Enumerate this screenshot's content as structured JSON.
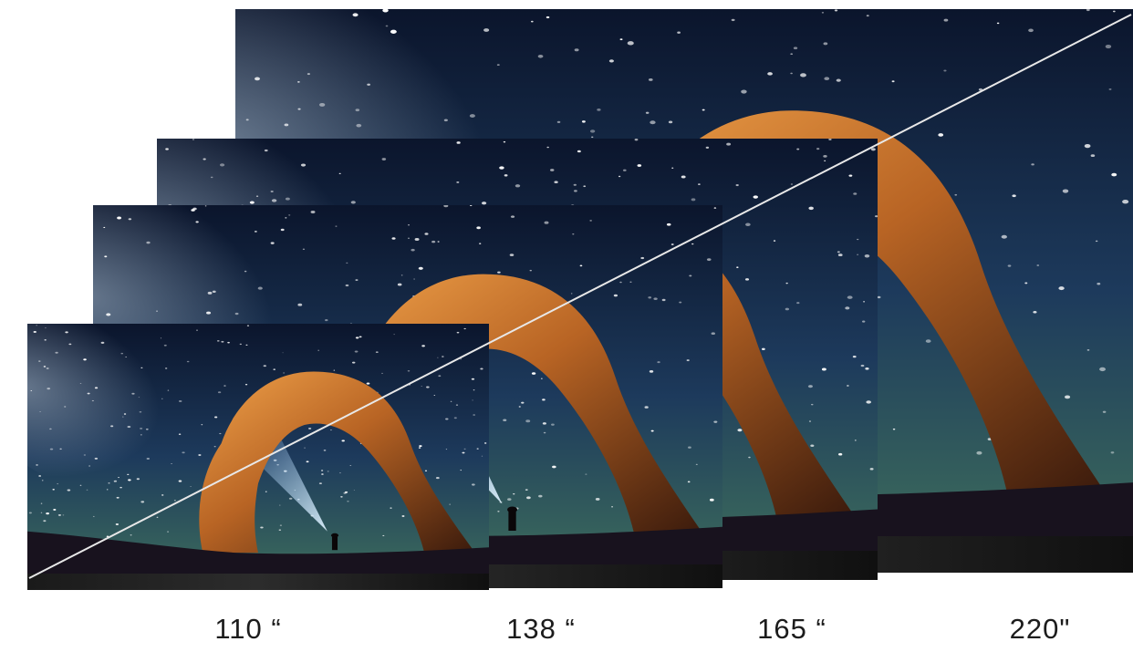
{
  "labels": [
    "110 “",
    "138 “",
    "165 “",
    "220\""
  ],
  "colors": {
    "sky_top": "#0c1730",
    "sky_mid": "#1f3c5e",
    "sky_horizon": "#3f6f63",
    "rock_light": "#e08a3a",
    "rock_dark": "#5a2a10",
    "ground": "#1a1420",
    "background": "#ffffff"
  }
}
